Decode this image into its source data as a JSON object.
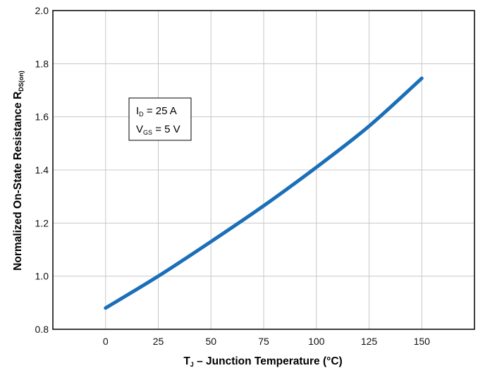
{
  "chart_data": {
    "type": "line",
    "title": "",
    "xlabel": {
      "main": "T",
      "sub": "J",
      "rest": " – Junction Temperature (°C)"
    },
    "ylabel": {
      "main": "Normalized On-State Resistance R",
      "sub": "DS(on)"
    },
    "xlim": [
      -25,
      175
    ],
    "ylim": [
      0.8,
      2.0
    ],
    "x_ticks": [
      "0",
      "25",
      "50",
      "75",
      "100",
      "125",
      "150"
    ],
    "y_ticks": [
      "0.8",
      "1.0",
      "1.2",
      "1.4",
      "1.6",
      "1.8",
      "2.0"
    ],
    "grid": true,
    "series": [
      {
        "color": "#1a6fb8",
        "x": [
          0,
          25,
          50,
          75,
          100,
          125,
          150
        ],
        "y": [
          0.88,
          1.0,
          1.13,
          1.265,
          1.41,
          1.565,
          1.745
        ]
      }
    ],
    "annotation": [
      {
        "main": "I",
        "sub": "D",
        "rest": " = 25 A"
      },
      {
        "main": "V",
        "sub": "GS",
        "rest": " = 5 V"
      }
    ]
  }
}
